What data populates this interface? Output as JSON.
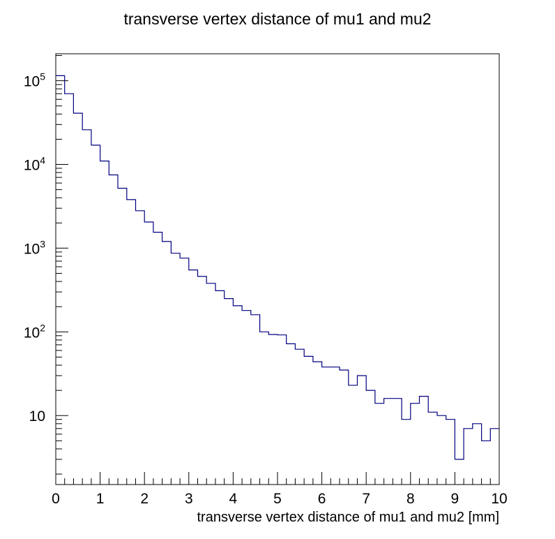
{
  "chart_data": {
    "type": "histogram",
    "title": "transverse vertex distance of mu1 and mu2",
    "xlabel": "transverse vertex distance of mu1 and mu2 [mm]",
    "ylabel": "",
    "xlim": [
      0,
      10
    ],
    "ylim": [
      1.5,
      210000
    ],
    "y_scale": "log",
    "grid": false,
    "legend": "none",
    "line_color": "#000080",
    "x_ticks": [
      "0",
      "1",
      "2",
      "3",
      "4",
      "5",
      "6",
      "7",
      "8",
      "9",
      "10"
    ],
    "y_ticks": [
      {
        "value": 10,
        "base": "10",
        "exp": ""
      },
      {
        "value": 100,
        "base": "10",
        "exp": "2"
      },
      {
        "value": 1000,
        "base": "10",
        "exp": "3"
      },
      {
        "value": 10000,
        "base": "10",
        "exp": "4"
      },
      {
        "value": 100000,
        "base": "10",
        "exp": "5"
      }
    ],
    "bin_edges": [
      0,
      0.2,
      0.4,
      0.6,
      0.8,
      1.0,
      1.2,
      1.4,
      1.6,
      1.8,
      2.0,
      2.2,
      2.4,
      2.6,
      2.8,
      3.0,
      3.2,
      3.4,
      3.6,
      3.8,
      4.0,
      4.2,
      4.4,
      4.6,
      4.8,
      5.0,
      5.2,
      5.4,
      5.6,
      5.8,
      6.0,
      6.2,
      6.4,
      6.6,
      6.8,
      7.0,
      7.2,
      7.4,
      7.6,
      7.8,
      8.0,
      8.2,
      8.4,
      8.6,
      8.8,
      9.0,
      9.2,
      9.4,
      9.6,
      9.8,
      10.0
    ],
    "values": [
      115000,
      70000,
      41000,
      26000,
      17000,
      11000,
      7500,
      5200,
      3800,
      2800,
      2050,
      1550,
      1200,
      870,
      760,
      550,
      460,
      380,
      310,
      250,
      205,
      180,
      160,
      100,
      93,
      92,
      72,
      62,
      51,
      44,
      38,
      38,
      35,
      23,
      30,
      20,
      14,
      16,
      16,
      9,
      14,
      17,
      11,
      10,
      9,
      3,
      7,
      8,
      5,
      7
    ]
  }
}
